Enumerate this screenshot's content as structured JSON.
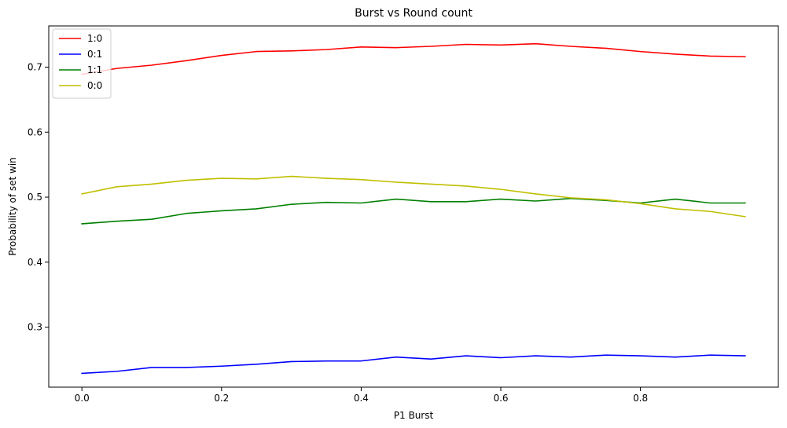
{
  "chart_data": {
    "type": "line",
    "title": "Burst vs Round count",
    "xlabel": "P1 Burst",
    "ylabel": "Probability of set win",
    "xlim": [
      -0.0475,
      0.9975
    ],
    "ylim": [
      0.2077,
      0.7634
    ],
    "xticks": [
      0.0,
      0.2,
      0.4,
      0.6,
      0.8
    ],
    "xtick_labels": [
      "0.0",
      "0.2",
      "0.4",
      "0.6",
      "0.8"
    ],
    "yticks": [
      0.3,
      0.4,
      0.5,
      0.6,
      0.7
    ],
    "ytick_labels": [
      "0.3",
      "0.4",
      "0.5",
      "0.6",
      "0.7"
    ],
    "grid": false,
    "legend_position": "top-left",
    "x": [
      0.0,
      0.05,
      0.1,
      0.15,
      0.2,
      0.25,
      0.3,
      0.35,
      0.4,
      0.45,
      0.5,
      0.55,
      0.6,
      0.65,
      0.7,
      0.75,
      0.8,
      0.85,
      0.9,
      0.95
    ],
    "series": [
      {
        "name": "1:0",
        "color": "#ff0000",
        "values": [
          0.689,
          0.698,
          0.703,
          0.71,
          0.718,
          0.724,
          0.725,
          0.727,
          0.731,
          0.73,
          0.732,
          0.735,
          0.734,
          0.736,
          0.732,
          0.729,
          0.724,
          0.72,
          0.717,
          0.716
        ]
      },
      {
        "name": "0:1",
        "color": "#0000ff",
        "values": [
          0.229,
          0.232,
          0.238,
          0.238,
          0.24,
          0.243,
          0.247,
          0.248,
          0.248,
          0.254,
          0.251,
          0.256,
          0.253,
          0.256,
          0.254,
          0.257,
          0.256,
          0.254,
          0.257,
          0.256
        ]
      },
      {
        "name": "1:1",
        "color": "#008000",
        "values": [
          0.459,
          0.463,
          0.466,
          0.475,
          0.479,
          0.482,
          0.489,
          0.492,
          0.491,
          0.497,
          0.493,
          0.493,
          0.497,
          0.494,
          0.498,
          0.495,
          0.491,
          0.497,
          0.491,
          0.491
        ]
      },
      {
        "name": "0:0",
        "color": "#bfbf00",
        "values": [
          0.505,
          0.516,
          0.52,
          0.526,
          0.529,
          0.528,
          0.532,
          0.529,
          0.527,
          0.523,
          0.52,
          0.517,
          0.512,
          0.505,
          0.499,
          0.496,
          0.49,
          0.482,
          0.478,
          0.47
        ]
      }
    ]
  }
}
